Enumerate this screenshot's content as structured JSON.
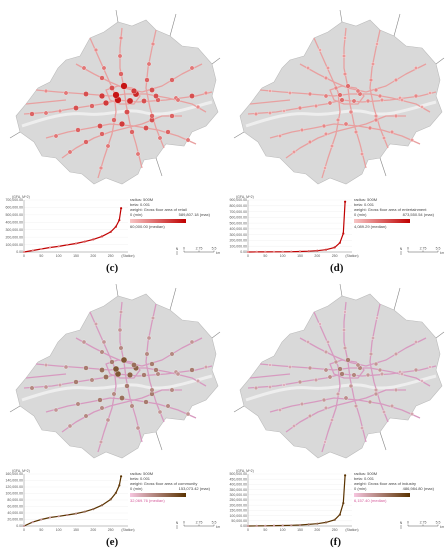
{
  "panels": [
    {
      "id": "c",
      "label": "(c)",
      "ylabel": "(GFA, M^2)",
      "ylabels": [
        "700,000.00",
        "600,000.00",
        "500,000.00",
        "400,000.00",
        "300,000.00",
        "200,000.00",
        "100,000.00",
        "0.00"
      ],
      "xlabels": [
        "0",
        "50",
        "100",
        "150",
        "200",
        "250",
        "(Station)"
      ],
      "legend": {
        "radius": "radius: 500M",
        "beta": "beta: 0.001",
        "weight": "weight: Gross floor area of retail",
        "min": "0 (min)",
        "max": "589,807.18 (max)",
        "median": "60,000.00 (median)"
      },
      "scale": {
        "ticks": [
          "0",
          "2.75",
          "5.5"
        ],
        "unit": "km"
      },
      "colors": {
        "low": "#f7c6c6",
        "high": "#c00000"
      }
    },
    {
      "id": "d",
      "label": "(d)",
      "ylabel": "(GFA, M^2)",
      "ylabels": [
        "900,000.00",
        "800,000.00",
        "700,000.00",
        "600,000.00",
        "500,000.00",
        "400,000.00",
        "300,000.00",
        "200,000.00",
        "100,000.00",
        "0.00"
      ],
      "xlabels": [
        "0",
        "50",
        "100",
        "150",
        "200",
        "250",
        "(Station)"
      ],
      "legend": {
        "radius": "radius: 500M",
        "beta": "beta: 0.001",
        "weight": "weight: Gross floor area of entertainment",
        "min": "0 (min)",
        "max": "873,550.54 (max)",
        "median": "4,089.29 (median)"
      },
      "scale": {
        "ticks": [
          "0",
          "2.75",
          "5.5"
        ],
        "unit": "km"
      },
      "colors": {
        "low": "#f7c6c6",
        "high": "#c00000"
      }
    },
    {
      "id": "e",
      "label": "(e)",
      "ylabel": "(GFA, M^2)",
      "ylabels": [
        "160,000.00",
        "140,000.00",
        "120,000.00",
        "100,000.00",
        "80,000.00",
        "60,000.00",
        "40,000.00",
        "20,000.00",
        "0.00"
      ],
      "xlabels": [
        "0",
        "50",
        "100",
        "150",
        "200",
        "250",
        "(Station)"
      ],
      "legend": {
        "radius": "radius: 500M",
        "beta": "beta: 0.001",
        "weight": "weight: Gross floor area of community",
        "min": "0 (min)",
        "max": "153,073.42 (max)",
        "median": "32,069.76 (median)"
      },
      "scale": {
        "ticks": [
          "0",
          "2.75",
          "5.5"
        ],
        "unit": "km"
      },
      "colors": {
        "low": "#f7c6e0",
        "high": "#5a3300"
      }
    },
    {
      "id": "f",
      "label": "(f)",
      "ylabel": "(GFA, M^2)",
      "ylabels": [
        "500,000.00",
        "450,000.00",
        "400,000.00",
        "350,000.00",
        "300,000.00",
        "250,000.00",
        "200,000.00",
        "150,000.00",
        "100,000.00",
        "50,000.00",
        "0.00"
      ],
      "xlabels": [
        "0",
        "50",
        "100",
        "150",
        "200",
        "250",
        "(Station)"
      ],
      "legend": {
        "radius": "radius: 500M",
        "beta": "beta: 0.001",
        "weight": "weight: Gross floor area of industry",
        "min": "0 (min)",
        "max": "486,984.80 (max)",
        "median": "6,157.40 (median)"
      },
      "scale": {
        "ticks": [
          "0",
          "2.75",
          "5.5"
        ],
        "unit": "km"
      },
      "colors": {
        "low": "#f7c6e0",
        "high": "#5a3300"
      }
    }
  ],
  "chart_data": [
    {
      "type": "line",
      "title": "",
      "ylabel": "(GFA, M^2)",
      "xlabel": "(Station)",
      "ylim": [
        0,
        700000
      ],
      "xlim": [
        0,
        300
      ],
      "x": [
        0,
        25,
        50,
        75,
        100,
        125,
        150,
        175,
        200,
        225,
        250,
        265,
        275,
        280
      ],
      "values": [
        0,
        20000,
        40000,
        60000,
        75000,
        95000,
        115000,
        140000,
        170000,
        210000,
        270000,
        340000,
        430000,
        590000
      ]
    },
    {
      "type": "line",
      "title": "",
      "ylabel": "(GFA, M^2)",
      "xlabel": "(Station)",
      "ylim": [
        0,
        900000
      ],
      "xlim": [
        0,
        300
      ],
      "x": [
        0,
        25,
        50,
        75,
        100,
        125,
        150,
        175,
        200,
        225,
        250,
        265,
        275,
        280
      ],
      "values": [
        0,
        1000,
        2000,
        3000,
        4000,
        6000,
        9000,
        14000,
        22000,
        40000,
        80000,
        160000,
        320000,
        870000
      ]
    },
    {
      "type": "line",
      "title": "",
      "ylabel": "(GFA, M^2)",
      "xlabel": "(Station)",
      "ylim": [
        0,
        160000
      ],
      "xlim": [
        0,
        300
      ],
      "x": [
        0,
        25,
        50,
        75,
        100,
        125,
        150,
        175,
        200,
        225,
        250,
        265,
        275,
        280
      ],
      "values": [
        0,
        12000,
        20000,
        26000,
        30000,
        34000,
        38000,
        44000,
        52000,
        64000,
        82000,
        102000,
        125000,
        153000
      ]
    },
    {
      "type": "line",
      "title": "",
      "ylabel": "(GFA, M^2)",
      "xlabel": "(Station)",
      "ylim": [
        0,
        500000
      ],
      "xlim": [
        0,
        300
      ],
      "x": [
        0,
        25,
        50,
        75,
        100,
        125,
        150,
        175,
        200,
        225,
        250,
        265,
        275,
        280
      ],
      "values": [
        0,
        1000,
        2000,
        3500,
        5000,
        7000,
        10000,
        15000,
        22000,
        35000,
        60000,
        110000,
        220000,
        487000
      ]
    }
  ]
}
